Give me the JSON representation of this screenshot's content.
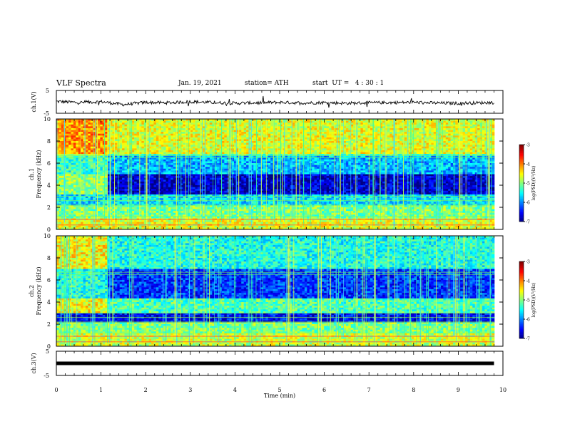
{
  "header": {
    "title": "VLF Spectra",
    "date": "Jan. 19, 2021",
    "station": "station= ATH",
    "start": "start  UT =   4 : 30 : 1"
  },
  "chart_data": [
    {
      "type": "line",
      "panel": "ch1-waveform",
      "ylabel": "ch.1(V)",
      "ylim": [
        -5,
        5
      ],
      "yticks": [
        "5",
        "-5"
      ],
      "xlim": [
        0,
        10
      ],
      "x": [
        0,
        0.5,
        1,
        1.5,
        2,
        2.5,
        3,
        3.5,
        4,
        4.5,
        5,
        5.5,
        6,
        6.5,
        7,
        7.5,
        8,
        8.5,
        9,
        9.5,
        9.8
      ],
      "y": [
        0.2,
        -0.3,
        0.1,
        -1.2,
        -0.2,
        -0.4,
        0.1,
        -0.3,
        -0.6,
        -0.4,
        -0.2,
        -0.5,
        -0.3,
        -0.6,
        -0.4,
        -0.3,
        -0.2,
        -0.5,
        -0.6,
        -0.4,
        -0.3
      ]
    },
    {
      "type": "heatmap",
      "panel": "ch1-spectrogram",
      "ylabel_line1": "ch.1",
      "ylabel_line2": "Frequency (kHz)",
      "ylim": [
        0,
        10
      ],
      "yticks": [
        "0",
        "2",
        "4",
        "6",
        "8",
        "10"
      ],
      "xlim": [
        0,
        10
      ],
      "colorbar": {
        "label": "log(PSD)(V²/Hz)",
        "ticks": [
          "-3",
          "-4",
          "-5",
          "-6",
          "-7"
        ],
        "range": [
          -7,
          -3
        ]
      }
    },
    {
      "type": "heatmap",
      "panel": "ch2-spectrogram",
      "ylabel_line1": "ch.2",
      "ylabel_line2": "Frequency (kHz)",
      "ylim": [
        0,
        10
      ],
      "yticks": [
        "0",
        "2",
        "4",
        "6",
        "8",
        "10"
      ],
      "xlim": [
        0,
        10
      ],
      "colorbar": {
        "label": "log(PSD)(V²/Hz)",
        "ticks": [
          "-3",
          "-4",
          "-5",
          "-6",
          "-7"
        ],
        "range": [
          -7,
          -3
        ]
      }
    },
    {
      "type": "line",
      "panel": "ch3-waveform",
      "ylabel": "ch.3(V)",
      "ylim": [
        -5,
        5
      ],
      "yticks": [
        "5",
        "-5"
      ],
      "xlim": [
        0,
        10
      ],
      "x": [
        0,
        9.8
      ],
      "y": [
        0,
        0
      ],
      "xlabel": "Time (min)",
      "xticks": [
        "0",
        "1",
        "2",
        "3",
        "4",
        "5",
        "6",
        "7",
        "8",
        "9",
        "10"
      ]
    }
  ]
}
